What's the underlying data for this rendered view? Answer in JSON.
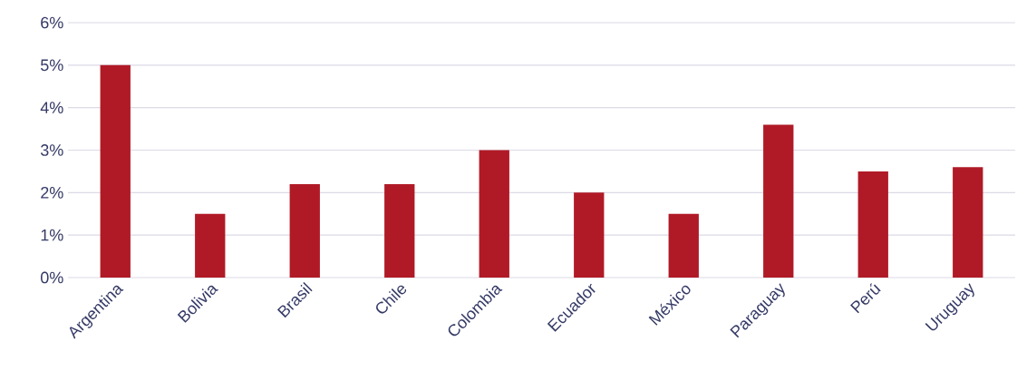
{
  "chart_data": {
    "type": "bar",
    "categories": [
      "Argentina",
      "Bolivia",
      "Brasil",
      "Chile",
      "Colombia",
      "Ecuador",
      "México",
      "Paraguay",
      "Perú",
      "Uruguay"
    ],
    "values": [
      5,
      1.5,
      2.2,
      2.2,
      3.0,
      2.0,
      1.5,
      3.6,
      2.5,
      2.6
    ],
    "color": "#b01a26",
    "ylim": [
      0,
      6
    ],
    "yticks": [
      {
        "value": 0,
        "label": "0%"
      },
      {
        "value": 1,
        "label": "1%"
      },
      {
        "value": 2,
        "label": "2%"
      },
      {
        "value": 3,
        "label": "3%"
      },
      {
        "value": 4,
        "label": "4%"
      },
      {
        "value": 5,
        "label": "5%"
      },
      {
        "value": 6,
        "label": "6%"
      }
    ],
    "grid": "y"
  }
}
